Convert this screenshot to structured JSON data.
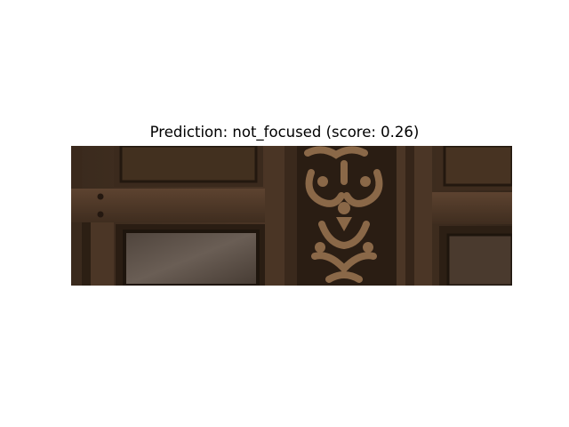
{
  "title": "Prediction: not_focused (score: 0.26)",
  "image": {
    "subject": "carved-wooden-door-panels",
    "colors": {
      "wood_dark": "#2e2016",
      "wood_mid": "#4a3424",
      "wood_light": "#6e5038",
      "panel_glass": "#5b5048",
      "carving": "#7a5a40"
    }
  }
}
